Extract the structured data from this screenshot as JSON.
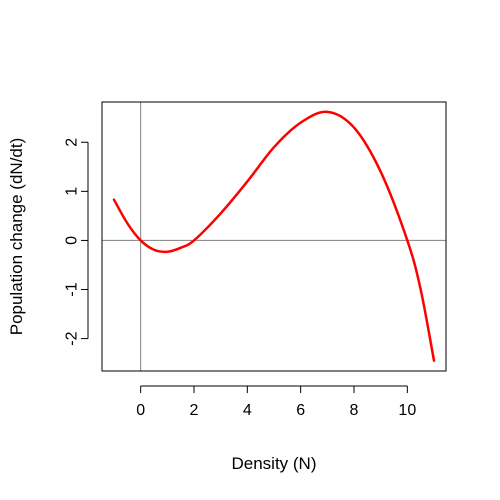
{
  "chart_data": {
    "type": "line",
    "title": "",
    "xlabel": "Density (N)",
    "ylabel": "Population change (dN/dt)",
    "xlim": [
      -1.45,
      11.45
    ],
    "ylim": [
      -2.66,
      2.82
    ],
    "x_ticks": [
      0,
      2,
      4,
      6,
      8,
      10
    ],
    "y_ticks": [
      -2,
      -1,
      0,
      1,
      2
    ],
    "x_tick_labels": [
      "0",
      "2",
      "4",
      "6",
      "8",
      "10"
    ],
    "y_tick_labels": [
      "-2",
      "-1",
      "0",
      "1",
      "2"
    ],
    "reference_lines": {
      "horizontal": 0,
      "vertical": 0,
      "color": "#808080"
    },
    "grid": false,
    "legend": "none",
    "series": [
      {
        "color": "#ff0000",
        "x": [
          -1,
          -0.5,
          0,
          0.5,
          1,
          1.5,
          2,
          3,
          4,
          5,
          6,
          7,
          8,
          9,
          10,
          10.5,
          11
        ],
        "y": [
          0.83,
          0.35,
          0.0,
          -0.19,
          -0.23,
          -0.15,
          0.0,
          0.55,
          1.2,
          1.9,
          2.4,
          2.62,
          2.3,
          1.4,
          0.0,
          -1.0,
          -2.45
        ]
      }
    ]
  }
}
